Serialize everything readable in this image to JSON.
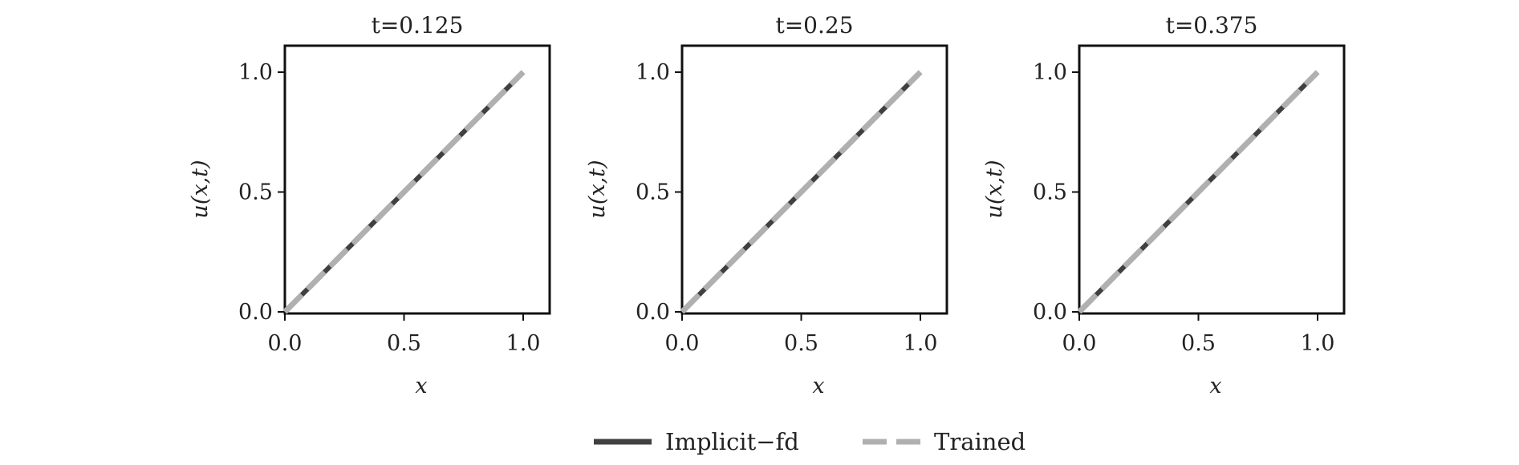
{
  "chart_data": [
    {
      "type": "line",
      "title": "t=0.125",
      "xlabel": "x",
      "ylabel": "u(x,t)",
      "xlim": [
        0,
        1
      ],
      "ylim": [
        0,
        1
      ],
      "xticks": [
        "0.0",
        "0.5",
        "1.0"
      ],
      "yticks": [
        "0.0",
        "0.5",
        "1.0"
      ],
      "series": [
        {
          "name": "Implicit-fd",
          "x": [
            0.0,
            0.25,
            0.5,
            0.75,
            1.0
          ],
          "y": [
            0.0,
            0.25,
            0.5,
            0.75,
            1.0
          ]
        },
        {
          "name": "Trained",
          "x": [
            0.0,
            0.25,
            0.5,
            0.75,
            1.0
          ],
          "y": [
            0.0,
            0.25,
            0.5,
            0.75,
            1.0
          ]
        }
      ]
    },
    {
      "type": "line",
      "title": "t=0.25",
      "xlabel": "x",
      "ylabel": "u(x,t)",
      "xlim": [
        0,
        1
      ],
      "ylim": [
        0,
        1
      ],
      "xticks": [
        "0.0",
        "0.5",
        "1.0"
      ],
      "yticks": [
        "0.0",
        "0.5",
        "1.0"
      ],
      "series": [
        {
          "name": "Implicit-fd",
          "x": [
            0.0,
            0.25,
            0.5,
            0.75,
            1.0
          ],
          "y": [
            0.0,
            0.25,
            0.5,
            0.75,
            1.0
          ]
        },
        {
          "name": "Trained",
          "x": [
            0.0,
            0.25,
            0.5,
            0.75,
            1.0
          ],
          "y": [
            0.0,
            0.25,
            0.5,
            0.75,
            1.0
          ]
        }
      ]
    },
    {
      "type": "line",
      "title": "t=0.375",
      "xlabel": "x",
      "ylabel": "u(x,t)",
      "xlim": [
        0,
        1
      ],
      "ylim": [
        0,
        1
      ],
      "xticks": [
        "0.0",
        "0.5",
        "1.0"
      ],
      "yticks": [
        "0.0",
        "0.5",
        "1.0"
      ],
      "series": [
        {
          "name": "Implicit-fd",
          "x": [
            0.0,
            0.25,
            0.5,
            0.75,
            1.0
          ],
          "y": [
            0.0,
            0.25,
            0.5,
            0.75,
            1.0
          ]
        },
        {
          "name": "Trained",
          "x": [
            0.0,
            0.25,
            0.5,
            0.75,
            1.0
          ],
          "y": [
            0.0,
            0.25,
            0.5,
            0.75,
            1.0
          ]
        }
      ]
    }
  ],
  "legend": {
    "placement": "bottom-center",
    "items": [
      {
        "label": "Implicit−fd",
        "color": "#404040",
        "style": "solid"
      },
      {
        "label": "Trained",
        "color": "#b0b0b0",
        "style": "dashed"
      }
    ]
  },
  "colors": {
    "implicit_fd": "#404040",
    "trained": "#b0b0b0",
    "axes": "#111111"
  }
}
